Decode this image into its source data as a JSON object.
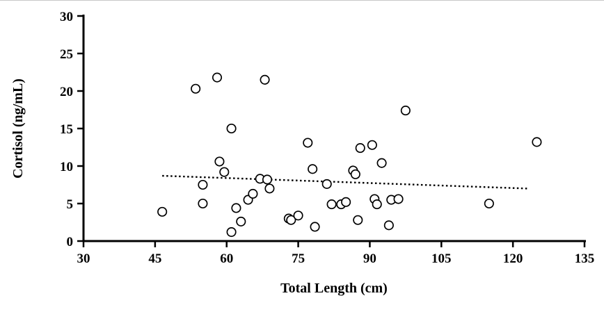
{
  "figure": {
    "background": "#ffffff",
    "axis_color": "#000000",
    "marker_fill": "#ffffff",
    "marker_stroke": "#000000",
    "trendline_color": "#000000"
  },
  "chart_data": {
    "type": "scatter",
    "title": "",
    "xlabel": "Total Length (cm)",
    "ylabel": "Cortisol (ng/mL)",
    "xlim": [
      30,
      135
    ],
    "ylim": [
      0,
      30
    ],
    "xticks": [
      30,
      45,
      60,
      75,
      90,
      105,
      120,
      135
    ],
    "yticks": [
      0,
      5,
      10,
      15,
      20,
      25,
      30
    ],
    "grid": false,
    "legend": "none",
    "marker": "open-circle",
    "points": [
      [
        46.5,
        3.9
      ],
      [
        53.5,
        20.3
      ],
      [
        55,
        7.5
      ],
      [
        55,
        5.0
      ],
      [
        58,
        21.8
      ],
      [
        58.5,
        10.6
      ],
      [
        59.5,
        9.2
      ],
      [
        61,
        15.0
      ],
      [
        61,
        1.2
      ],
      [
        62,
        4.4
      ],
      [
        63,
        2.6
      ],
      [
        64.5,
        5.5
      ],
      [
        65.5,
        6.3
      ],
      [
        67,
        8.3
      ],
      [
        68,
        21.5
      ],
      [
        68.5,
        8.2
      ],
      [
        69,
        7.0
      ],
      [
        73,
        3.0
      ],
      [
        73.5,
        2.8
      ],
      [
        75,
        3.4
      ],
      [
        77,
        13.1
      ],
      [
        78,
        9.6
      ],
      [
        78.5,
        1.9
      ],
      [
        81,
        7.6
      ],
      [
        82,
        4.9
      ],
      [
        84,
        4.9
      ],
      [
        85,
        5.2
      ],
      [
        86.5,
        9.4
      ],
      [
        87,
        8.9
      ],
      [
        87.5,
        2.8
      ],
      [
        88,
        12.4
      ],
      [
        90.5,
        12.8
      ],
      [
        91,
        5.6
      ],
      [
        91.5,
        4.9
      ],
      [
        92.5,
        10.4
      ],
      [
        94,
        2.1
      ],
      [
        94.5,
        5.5
      ],
      [
        96,
        5.6
      ],
      [
        97.5,
        17.4
      ],
      [
        115,
        5.0
      ],
      [
        125,
        13.2
      ]
    ],
    "trendline": {
      "style": "dotted",
      "x1": 46.5,
      "y1": 8.7,
      "x2": 123,
      "y2": 7.0
    }
  }
}
